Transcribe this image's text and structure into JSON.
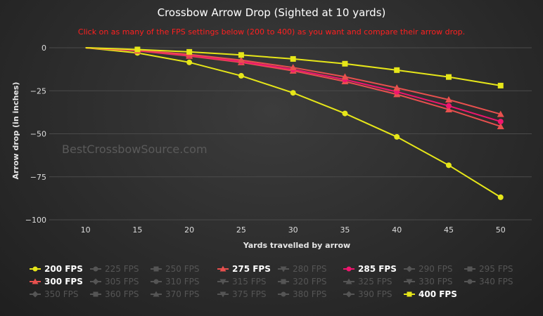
{
  "chart_data": {
    "type": "line",
    "title": "Crossbow Arrow Drop (Sighted at 10 yards)",
    "subtitle": "Click on as many of the FPS settings below (200 to 400) as you want and compare their arrow drop.",
    "xlabel": "Yards travelled by arrow",
    "ylabel": "Arrow drop (in inches)",
    "watermark": "BestCrossbowSource.com",
    "x": [
      10,
      15,
      20,
      25,
      30,
      35,
      40,
      45,
      50
    ],
    "xlim": [
      6.5,
      53
    ],
    "ylim": [
      -100,
      0
    ],
    "yticks": [
      0,
      -25,
      -50,
      -75,
      -100
    ],
    "ytick_labels": [
      "0",
      "−25",
      "−50",
      "−75",
      "−100"
    ],
    "grid": true,
    "legend_position": "bottom",
    "series": [
      {
        "name": "200 FPS",
        "visible": true,
        "color": "#e6e619",
        "marker": "circle",
        "values": [
          0,
          -3,
          -8.5,
          -16.3,
          -26.2,
          -38.2,
          -51.8,
          -68.3,
          -86.9
        ]
      },
      {
        "name": "225 FPS",
        "visible": false,
        "marker": "circle"
      },
      {
        "name": "250 FPS",
        "visible": false,
        "marker": "square"
      },
      {
        "name": "275 FPS",
        "visible": true,
        "color": "#e8504e",
        "marker": "triangle",
        "values": [
          0,
          -1.8,
          -4.8,
          -8.5,
          -13.4,
          -19.6,
          -27.1,
          -35.9,
          -45.7
        ]
      },
      {
        "name": "280 FPS",
        "visible": false,
        "marker": "triangle-down"
      },
      {
        "name": "285 FPS",
        "visible": true,
        "color": "#f0156e",
        "marker": "circle",
        "values": [
          0,
          -1.6,
          -4.4,
          -8,
          -12.6,
          -18.5,
          -25.6,
          -33.8,
          -42.9
        ]
      },
      {
        "name": "290 FPS",
        "visible": false,
        "marker": "diamond"
      },
      {
        "name": "295 FPS",
        "visible": false,
        "marker": "square"
      },
      {
        "name": "300 FPS",
        "visible": true,
        "color": "#e8504e",
        "marker": "triangle",
        "values": [
          0,
          -1.4,
          -3.9,
          -7.2,
          -11.5,
          -16.9,
          -23.3,
          -30.2,
          -38.6
        ]
      },
      {
        "name": "305 FPS",
        "visible": false,
        "marker": "diamond"
      },
      {
        "name": "310 FPS",
        "visible": false,
        "marker": "circle"
      },
      {
        "name": "315 FPS",
        "visible": false,
        "marker": "triangle-down"
      },
      {
        "name": "320 FPS",
        "visible": false,
        "marker": "square"
      },
      {
        "name": "325 FPS",
        "visible": false,
        "marker": "triangle"
      },
      {
        "name": "330 FPS",
        "visible": false,
        "marker": "triangle-down"
      },
      {
        "name": "340 FPS",
        "visible": false,
        "marker": "circle"
      },
      {
        "name": "350 FPS",
        "visible": false,
        "marker": "diamond"
      },
      {
        "name": "360 FPS",
        "visible": false,
        "marker": "square"
      },
      {
        "name": "370 FPS",
        "visible": false,
        "marker": "triangle"
      },
      {
        "name": "375 FPS",
        "visible": false,
        "marker": "triangle-down"
      },
      {
        "name": "380 FPS",
        "visible": false,
        "marker": "circle"
      },
      {
        "name": "390 FPS",
        "visible": false,
        "marker": "diamond"
      },
      {
        "name": "400 FPS",
        "visible": true,
        "color": "#e6e619",
        "marker": "square",
        "values": [
          0,
          -1,
          -2.4,
          -4.2,
          -6.5,
          -9.3,
          -13,
          -17,
          -22
        ]
      }
    ]
  }
}
